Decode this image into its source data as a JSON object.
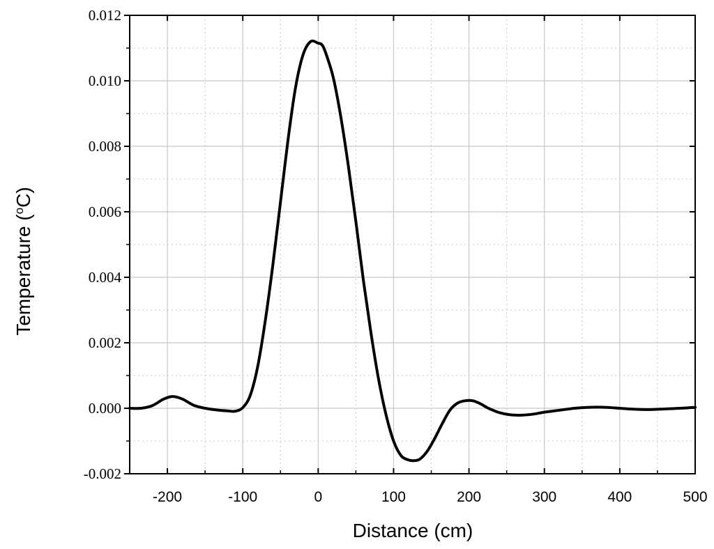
{
  "chart_data": {
    "type": "line",
    "title": "",
    "xlabel": "Distance (cm)",
    "ylabel": {
      "main": "Temperature (",
      "superscript": "o",
      "unit": "C)"
    },
    "xlim": [
      -250,
      500
    ],
    "ylim": [
      -0.002,
      0.012
    ],
    "x_ticks": [
      -200,
      -100,
      0,
      100,
      200,
      300,
      400,
      500
    ],
    "x_tick_labels": [
      "-200",
      "-100",
      "0",
      "100",
      "200",
      "300",
      "400",
      "500"
    ],
    "y_ticks": [
      -0.002,
      0.0,
      0.002,
      0.004,
      0.006,
      0.008,
      0.01,
      0.012
    ],
    "y_tick_labels": [
      "-0.002",
      "0.000",
      "0.002",
      "0.004",
      "0.006",
      "0.008",
      "0.010",
      "0.012"
    ],
    "grid": true,
    "legend": "none",
    "line_color": "#000000",
    "grid_color": "#c8c8c8",
    "series": [
      {
        "x": [
          -250,
          -235,
          -220,
          -205,
          -193,
          -180,
          -165,
          -150,
          -135,
          -120,
          -110,
          -100,
          -90,
          -80,
          -70,
          -60,
          -50,
          -40,
          -30,
          -20,
          -10,
          0,
          5,
          10,
          20,
          30,
          40,
          50,
          60,
          70,
          80,
          90,
          100,
          110,
          120,
          127,
          135,
          145,
          155,
          165,
          175,
          185,
          195,
          205,
          215,
          225,
          240,
          255,
          270,
          285,
          300,
          320,
          340,
          360,
          380,
          400,
          420,
          440,
          460,
          480,
          500
        ],
        "y": [
          0.0,
          0.0,
          8e-05,
          0.00028,
          0.00036,
          0.00028,
          9e-05,
          0.0,
          -5e-05,
          -8e-05,
          -9e-05,
          2e-05,
          0.0004,
          0.0013,
          0.0027,
          0.0044,
          0.0063,
          0.0082,
          0.0098,
          0.0108,
          0.0112,
          0.01115,
          0.0111,
          0.01085,
          0.0101,
          0.0089,
          0.0074,
          0.0057,
          0.0039,
          0.0023,
          0.0009,
          -0.0002,
          -0.001,
          -0.00145,
          -0.00158,
          -0.0016,
          -0.00155,
          -0.0013,
          -0.0009,
          -0.00045,
          -5e-05,
          0.00016,
          0.00023,
          0.00023,
          0.00014,
          1e-05,
          -0.00013,
          -0.0002,
          -0.00021,
          -0.00018,
          -0.00012,
          -6e-05,
          0.0,
          3e-05,
          3e-05,
          0.0,
          -3e-05,
          -4e-05,
          -2e-05,
          0.0,
          3e-05
        ]
      }
    ]
  }
}
